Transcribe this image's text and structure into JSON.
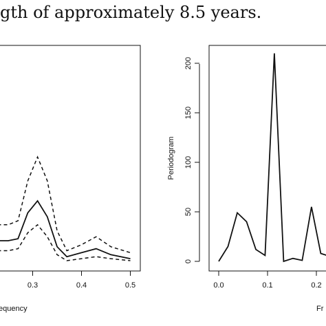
{
  "caption": "gth of approximately 8.5 years.",
  "chart_data": [
    {
      "type": "line",
      "title": "",
      "xlabel": "equency",
      "ylabel": "",
      "xlim": [
        0.0,
        0.5
      ],
      "xticks": [
        "0.3",
        "0.4",
        "0.5"
      ],
      "x": [
        0.0,
        0.05,
        0.1,
        0.15,
        0.2,
        0.25,
        0.27,
        0.29,
        0.31,
        0.33,
        0.35,
        0.37,
        0.4,
        0.43,
        0.46,
        0.5
      ],
      "series": [
        {
          "style": "dashed",
          "values": [
            18,
            18,
            18,
            18,
            18,
            18,
            20,
            40,
            52,
            40,
            15,
            5,
            8,
            12,
            7,
            4
          ]
        },
        {
          "style": "solid",
          "values": [
            10,
            10,
            10,
            10,
            10,
            10,
            11,
            24,
            30,
            22,
            7,
            2,
            4,
            6,
            3,
            1
          ]
        },
        {
          "style": "dashed",
          "values": [
            5,
            5,
            5,
            5,
            5,
            5,
            6,
            14,
            18,
            12,
            3,
            0,
            1,
            2,
            1,
            0
          ]
        }
      ],
      "ylim": [
        0,
        100
      ]
    },
    {
      "type": "line",
      "title": "",
      "xlabel": "Fr",
      "ylabel": "Periodogram",
      "yticks": [
        "0",
        "50",
        "100",
        "150",
        "200"
      ],
      "xticks": [
        "0.0",
        "0.1",
        "0.2"
      ],
      "ylim": [
        0,
        220
      ],
      "series": [
        {
          "x": [
            0.0,
            0.019,
            0.038,
            0.057,
            0.076,
            0.095,
            0.114,
            0.133,
            0.152,
            0.171,
            0.19,
            0.209,
            0.228
          ],
          "values": [
            0,
            15,
            49,
            40,
            12,
            6,
            210,
            0,
            3,
            1,
            55,
            8,
            5
          ]
        }
      ]
    }
  ]
}
